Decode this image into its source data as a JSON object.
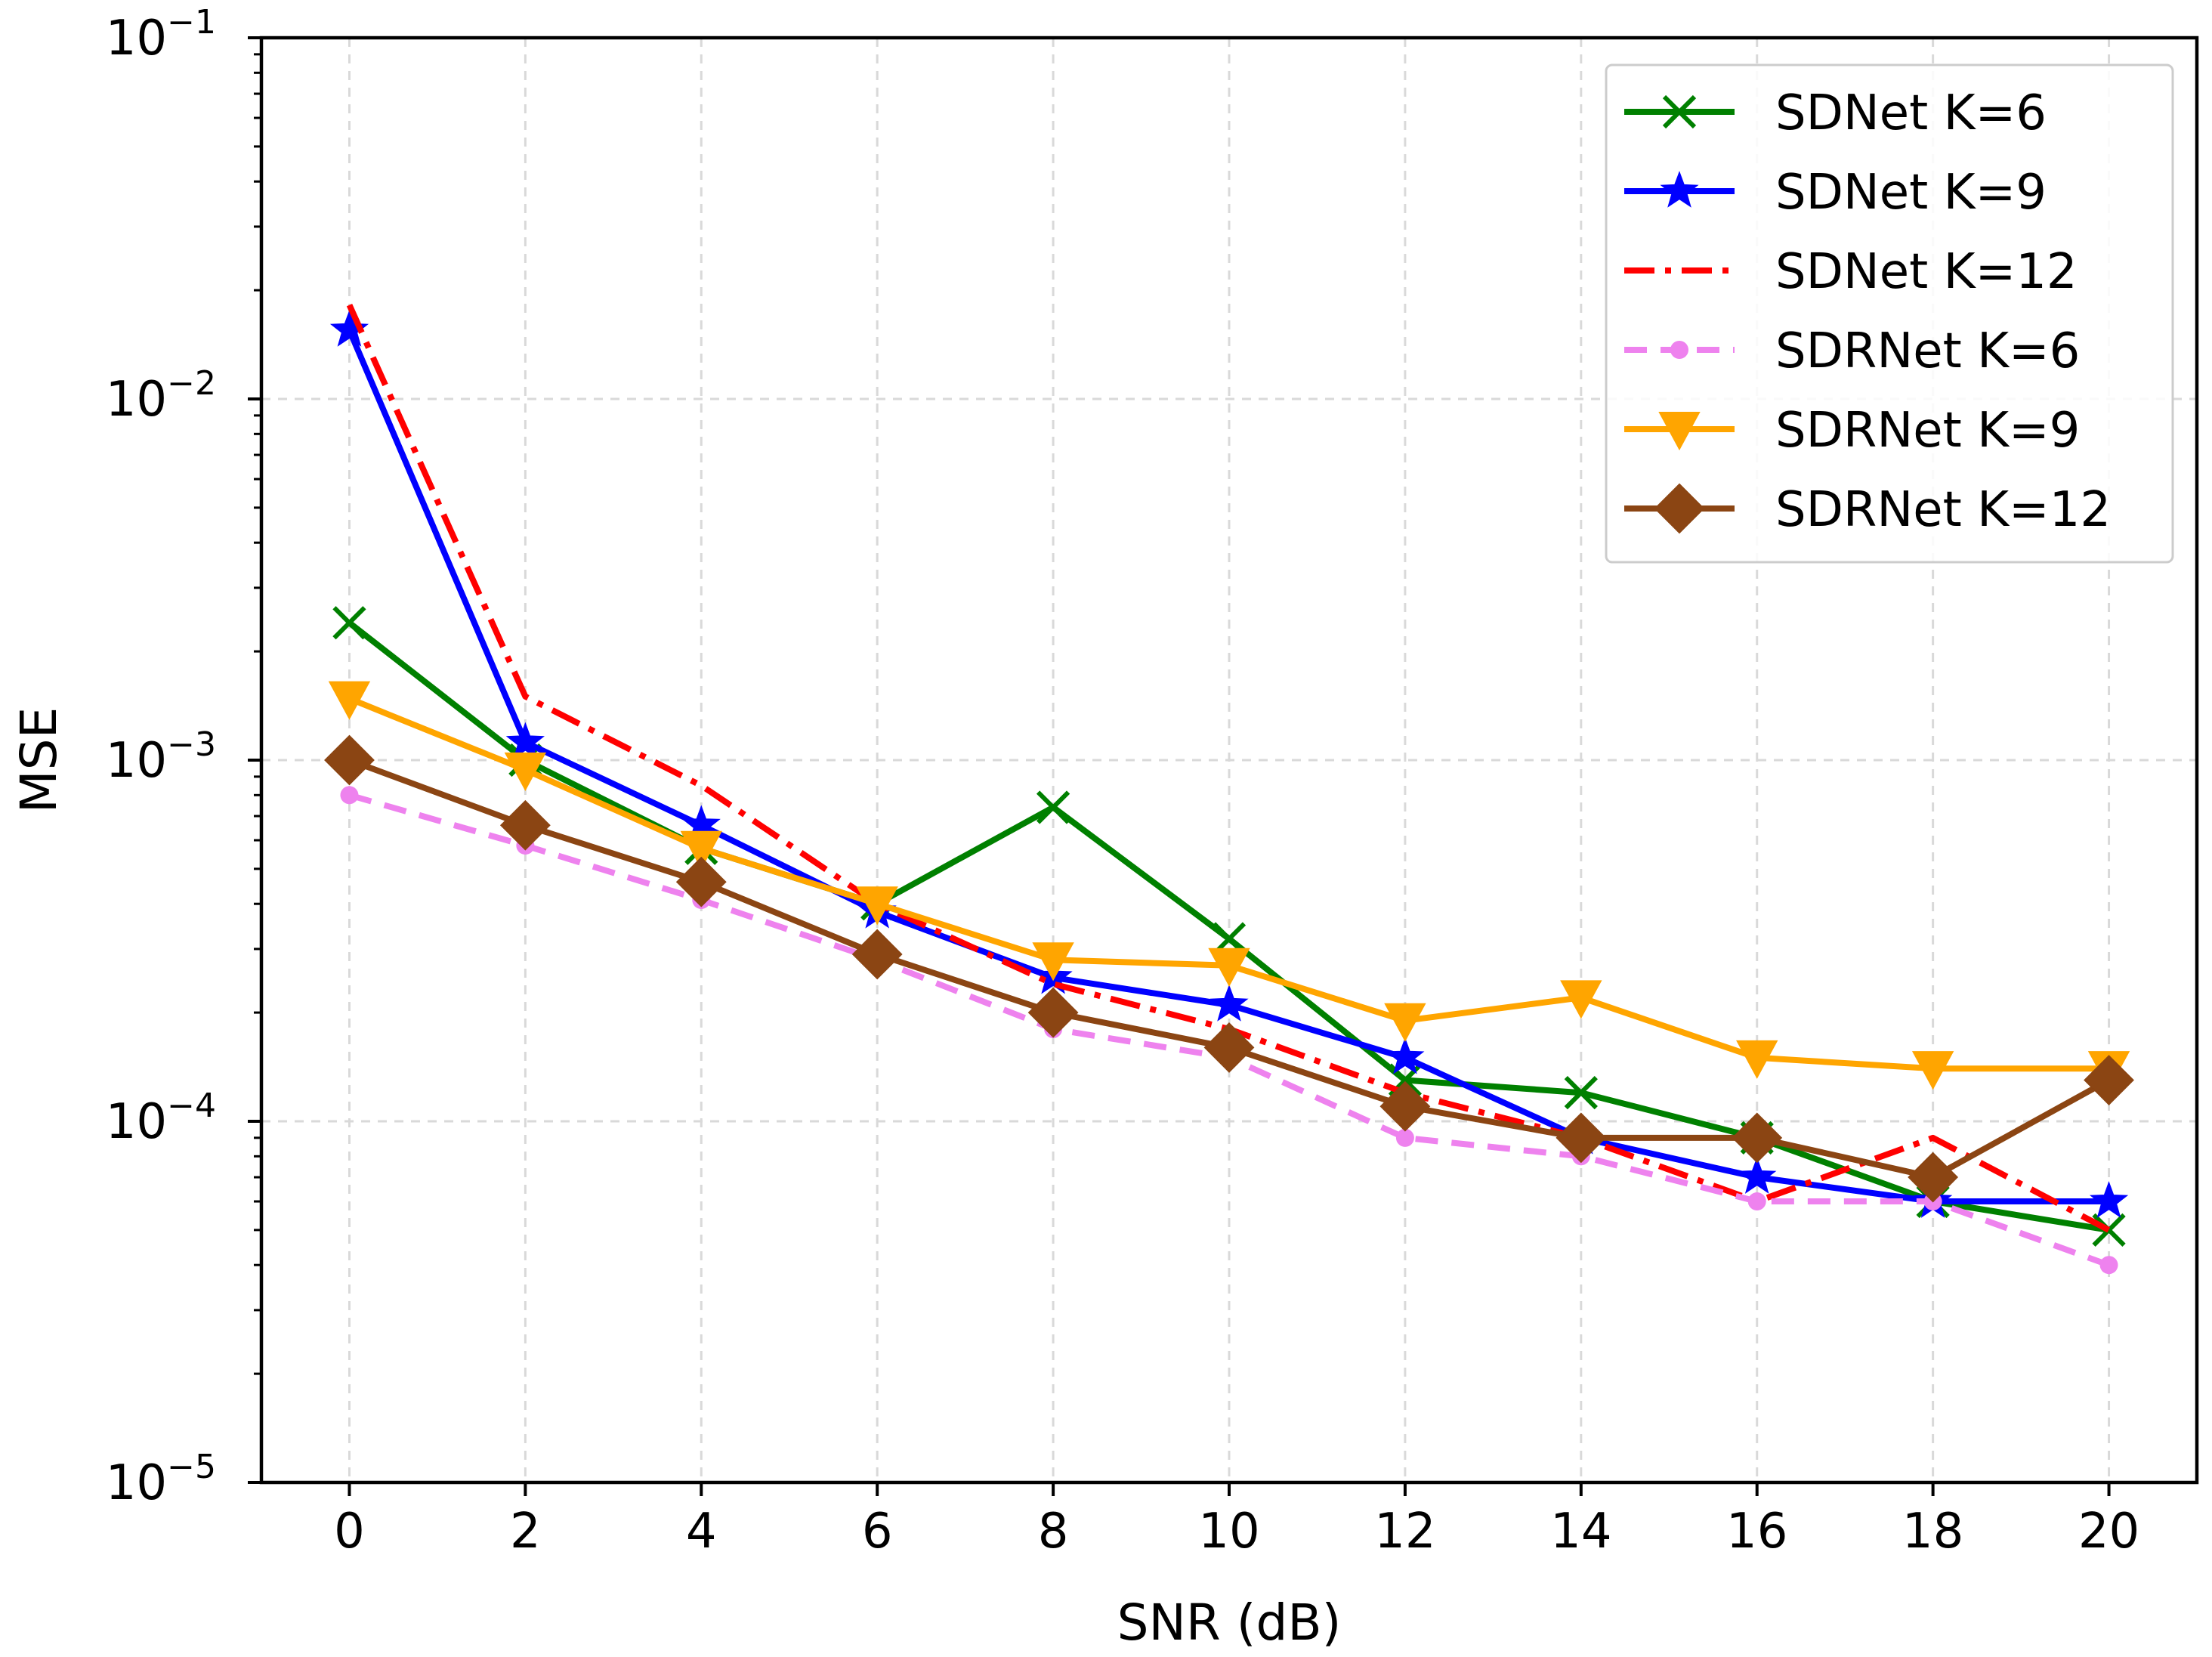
{
  "chart_data": {
    "type": "line",
    "title": "",
    "xlabel": "SNR (dB)",
    "ylabel": "MSE",
    "yscale": "log",
    "xlim": [
      -1,
      21
    ],
    "ylim": [
      1e-05,
      0.1
    ],
    "grid": true,
    "legend_position": "top-right",
    "x": [
      0,
      2,
      4,
      6,
      8,
      10,
      12,
      14,
      16,
      18,
      20
    ],
    "x_tick_labels": [
      "0",
      "2",
      "4",
      "6",
      "8",
      "10",
      "12",
      "14",
      "16",
      "18",
      "20"
    ],
    "y_ticks": [
      {
        "value": 1e-05,
        "base": "10",
        "exp": "−5"
      },
      {
        "value": 0.0001,
        "base": "10",
        "exp": "−4"
      },
      {
        "value": 0.001,
        "base": "10",
        "exp": "−3"
      },
      {
        "value": 0.01,
        "base": "10",
        "exp": "−2"
      },
      {
        "value": 0.1,
        "base": "10",
        "exp": "−1"
      }
    ],
    "series": [
      {
        "name": "SDNet K=6",
        "color": "#008000",
        "marker": "x",
        "dash": "solid",
        "values": [
          0.0024,
          0.001,
          0.00057,
          0.0004,
          0.00074,
          0.00032,
          0.00013,
          0.00012,
          9e-05,
          6e-05,
          5e-05
        ]
      },
      {
        "name": "SDNet K=9",
        "color": "#0000ff",
        "marker": "star",
        "dash": "solid",
        "values": [
          0.0155,
          0.00112,
          0.00066,
          0.00038,
          0.00025,
          0.00021,
          0.00015,
          9e-05,
          7e-05,
          6e-05,
          6e-05
        ]
      },
      {
        "name": "SDNet K=12",
        "color": "#ff0000",
        "marker": "none",
        "dash": "dashdot",
        "values": [
          0.0182,
          0.0015,
          0.00085,
          0.0004,
          0.00024,
          0.00018,
          0.00012,
          9e-05,
          6e-05,
          9e-05,
          5e-05
        ]
      },
      {
        "name": "SDRNet K=6",
        "color": "#ee82ee",
        "marker": "dot",
        "dash": "dashed",
        "values": [
          0.0008,
          0.00058,
          0.00041,
          0.00028,
          0.00018,
          0.00015,
          9e-05,
          8e-05,
          6e-05,
          6e-05,
          4e-05
        ]
      },
      {
        "name": "SDRNet K=9",
        "color": "#ffa500",
        "marker": "triangle-down",
        "dash": "solid",
        "values": [
          0.00148,
          0.00094,
          0.00057,
          0.0004,
          0.00028,
          0.00027,
          0.00019,
          0.00022,
          0.00015,
          0.00014,
          0.00014
        ]
      },
      {
        "name": "SDRNet K=12",
        "color": "#8b4513",
        "marker": "diamond",
        "dash": "solid",
        "values": [
          0.001,
          0.00066,
          0.00046,
          0.00029,
          0.0002,
          0.00016,
          0.00011,
          9e-05,
          9e-05,
          7e-05,
          0.00013
        ]
      }
    ]
  }
}
